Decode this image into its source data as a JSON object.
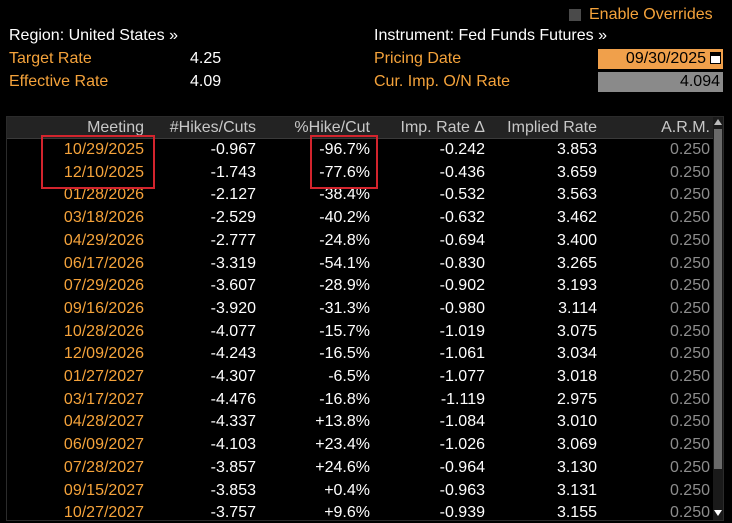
{
  "header": {
    "enable_overrides": "Enable Overrides",
    "region": "Region: United States »",
    "instrument": "Instrument: Fed Funds Futures »",
    "target_rate_label": "Target Rate",
    "target_rate_value": "4.25",
    "effective_rate_label": "Effective Rate",
    "effective_rate_value": "4.09",
    "pricing_date_label": "Pricing Date",
    "pricing_date_value": "09/30/2025",
    "cur_imp_label": "Cur. Imp. O/N Rate",
    "cur_imp_value": "4.094"
  },
  "table": {
    "columns": [
      "Meeting",
      "#Hikes/Cuts",
      "%Hike/Cut",
      "Imp. Rate Δ",
      "Implied Rate",
      "A.R.M."
    ],
    "rows": [
      [
        "10/29/2025",
        "-0.967",
        "-96.7%",
        "-0.242",
        "3.853",
        "0.250"
      ],
      [
        "12/10/2025",
        "-1.743",
        "-77.6%",
        "-0.436",
        "3.659",
        "0.250"
      ],
      [
        "01/28/2026",
        "-2.127",
        "-38.4%",
        "-0.532",
        "3.563",
        "0.250"
      ],
      [
        "03/18/2026",
        "-2.529",
        "-40.2%",
        "-0.632",
        "3.462",
        "0.250"
      ],
      [
        "04/29/2026",
        "-2.777",
        "-24.8%",
        "-0.694",
        "3.400",
        "0.250"
      ],
      [
        "06/17/2026",
        "-3.319",
        "-54.1%",
        "-0.830",
        "3.265",
        "0.250"
      ],
      [
        "07/29/2026",
        "-3.607",
        "-28.9%",
        "-0.902",
        "3.193",
        "0.250"
      ],
      [
        "09/16/2026",
        "-3.920",
        "-31.3%",
        "-0.980",
        "3.114",
        "0.250"
      ],
      [
        "10/28/2026",
        "-4.077",
        "-15.7%",
        "-1.019",
        "3.075",
        "0.250"
      ],
      [
        "12/09/2026",
        "-4.243",
        "-16.5%",
        "-1.061",
        "3.034",
        "0.250"
      ],
      [
        "01/27/2027",
        "-4.307",
        "-6.5%",
        "-1.077",
        "3.018",
        "0.250"
      ],
      [
        "03/17/2027",
        "-4.476",
        "-16.8%",
        "-1.119",
        "2.975",
        "0.250"
      ],
      [
        "04/28/2027",
        "-4.337",
        "+13.8%",
        "-1.084",
        "3.010",
        "0.250"
      ],
      [
        "06/09/2027",
        "-4.103",
        "+23.4%",
        "-1.026",
        "3.069",
        "0.250"
      ],
      [
        "07/28/2027",
        "-3.857",
        "+24.6%",
        "-0.964",
        "3.130",
        "0.250"
      ],
      [
        "09/15/2027",
        "-3.853",
        "+0.4%",
        "-0.963",
        "3.131",
        "0.250"
      ],
      [
        "10/27/2027",
        "-3.757",
        "+9.6%",
        "-0.939",
        "3.155",
        "0.250"
      ]
    ]
  },
  "colors": {
    "accent_orange": "#f5a33b",
    "highlight_red": "#d3242d",
    "background": "#000000"
  }
}
